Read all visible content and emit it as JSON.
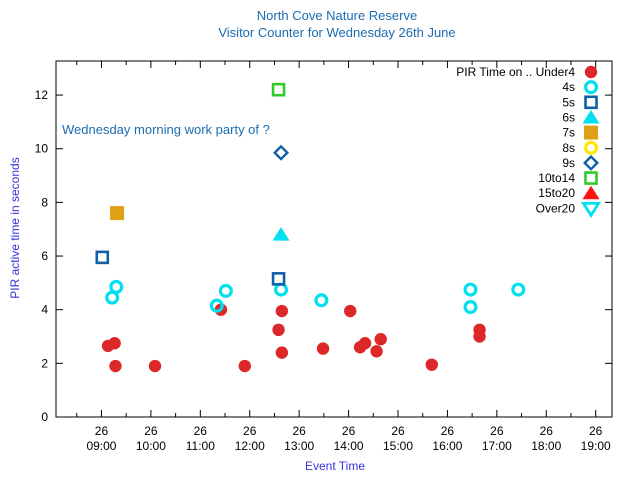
{
  "title": {
    "line1": "North Cove Nature Reserve",
    "line2": "Visitor Counter for Wednesday 26th June"
  },
  "annotation": "Wednesday morning work party of ?",
  "colors": {
    "title_blue": "#1b6cb0",
    "axis_label_blue": "#3333dd",
    "axis_black": "#000000",
    "under4_red": "#dc2828",
    "cyan": "#00e0ee",
    "marker_blue": "#1060a8",
    "orange": "#dfa017",
    "yellow": "#ffe800",
    "green": "#2fcc29",
    "bright_red": "#ff1111"
  },
  "chart_data": {
    "type": "scatter",
    "title": "North Cove Nature Reserve - Visitor Counter for Wednesday 26th June",
    "xlabel": "Event Time",
    "ylabel": "PIR active time in seconds",
    "annotation": "Wednesday morning work party of ?",
    "x_day": "26",
    "x_ticks": [
      "09:00",
      "10:00",
      "11:00",
      "12:00",
      "13:00",
      "14:00",
      "15:00",
      "16:00",
      "17:00",
      "18:00",
      "19:00"
    ],
    "yticks": [
      0,
      2,
      4,
      6,
      8,
      10,
      12
    ],
    "ylim": [
      0,
      13.27
    ],
    "xlim_hours": [
      8.08,
      19.33
    ],
    "grid": false,
    "legend_position": "top-right-inside",
    "series": [
      {
        "name": "PIR Time on .. Under4",
        "marker": "circle-filled",
        "color": "#dc2828",
        "points": [
          [
            "09:08",
            2.65
          ],
          [
            "09:16",
            2.75
          ],
          [
            "09:17",
            1.9
          ],
          [
            "10:05",
            1.9
          ],
          [
            "11:25",
            4.0
          ],
          [
            "11:54",
            1.9
          ],
          [
            "12:35",
            3.25
          ],
          [
            "12:39",
            3.95
          ],
          [
            "12:39",
            2.4
          ],
          [
            "13:29",
            2.55
          ],
          [
            "14:02",
            3.95
          ],
          [
            "14:14",
            2.6
          ],
          [
            "14:20",
            2.75
          ],
          [
            "14:34",
            2.45
          ],
          [
            "14:39",
            2.9
          ],
          [
            "15:41",
            1.95
          ],
          [
            "16:39",
            3.25
          ],
          [
            "16:39",
            3.0
          ]
        ]
      },
      {
        "name": "4s",
        "marker": "circle-open",
        "color": "#00e0ee",
        "points": [
          [
            "09:13",
            4.45
          ],
          [
            "09:18",
            4.85
          ],
          [
            "11:20",
            4.15
          ],
          [
            "11:31",
            4.7
          ],
          [
            "12:38",
            4.75
          ],
          [
            "13:27",
            4.35
          ],
          [
            "16:28",
            4.75
          ],
          [
            "16:28",
            4.1
          ],
          [
            "17:26",
            4.75
          ]
        ]
      },
      {
        "name": "5s",
        "marker": "square-open",
        "color": "#1060a8",
        "points": [
          [
            "09:01",
            5.95
          ],
          [
            "12:35",
            5.15
          ]
        ]
      },
      {
        "name": "6s",
        "marker": "triangle-filled",
        "color": "#00e0ee",
        "points": [
          [
            "12:38",
            6.8
          ]
        ]
      },
      {
        "name": "7s",
        "marker": "square-filled",
        "color": "#dfa017",
        "points": [
          [
            "09:19",
            7.6
          ]
        ]
      },
      {
        "name": "8s",
        "marker": "circle-open",
        "color": "#ffe800",
        "points": []
      },
      {
        "name": "9s",
        "marker": "diamond-open",
        "color": "#1060a8",
        "points": [
          [
            "12:38",
            9.85
          ]
        ]
      },
      {
        "name": "10to14",
        "marker": "square-open",
        "color": "#2fcc29",
        "points": [
          [
            "12:35",
            12.2
          ]
        ]
      },
      {
        "name": "15to20",
        "marker": "triangle-filled",
        "color": "#ff1111",
        "points": []
      },
      {
        "name": "Over20",
        "marker": "triangle-down-open",
        "color": "#00e0ee",
        "points": []
      }
    ]
  }
}
